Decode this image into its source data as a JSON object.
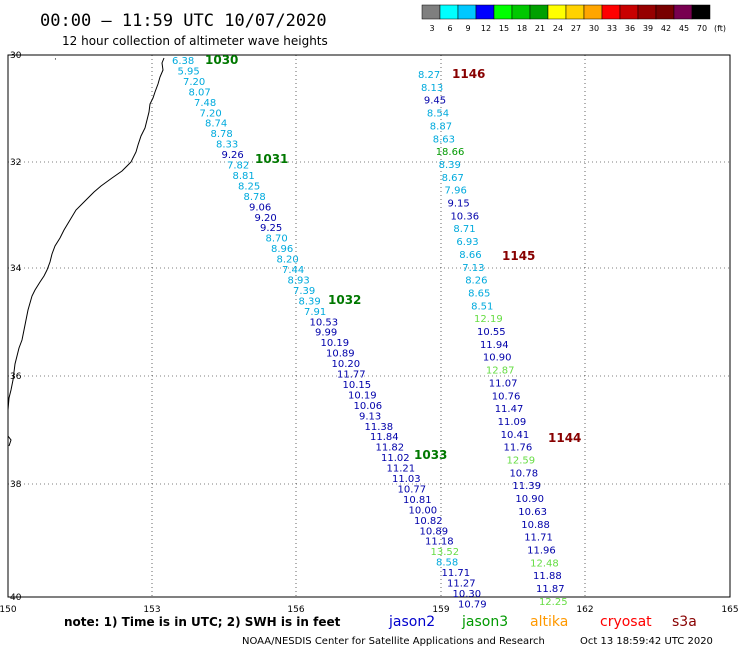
{
  "header": {
    "title": "00:00 – 11:59 UTC 10/07/2020",
    "subtitle": "12 hour collection of altimeter wave heights"
  },
  "color_scale": {
    "labels": [
      "3",
      "6",
      "9",
      "12",
      "15",
      "18",
      "21",
      "24",
      "27",
      "30",
      "33",
      "36",
      "39",
      "42",
      "45",
      "70",
      "(ft)"
    ],
    "colors": [
      "#7f7f7f",
      "#00ffff",
      "#00c8ff",
      "#0000ff",
      "#00ff00",
      "#00c800",
      "#00a000",
      "#ffff00",
      "#ffd200",
      "#ffa500",
      "#ff0000",
      "#c80000",
      "#960000",
      "#780000",
      "#780050",
      "#000000"
    ]
  },
  "axes": {
    "lon_labels": [
      "150",
      "153",
      "156",
      "159",
      "162",
      "165"
    ],
    "lat_labels": [
      "30",
      "32",
      "34",
      "36",
      "38",
      "40"
    ]
  },
  "tracks": [
    {
      "label": "1030",
      "label_color": "#007800",
      "values": [
        {
          "v": "6.38",
          "c": "#00aadd"
        },
        {
          "v": "5.95",
          "c": "#00aadd"
        },
        {
          "v": "7.20",
          "c": "#00aadd"
        },
        {
          "v": "8.07",
          "c": "#00aadd"
        },
        {
          "v": "7.48",
          "c": "#00aadd"
        },
        {
          "v": "7.20",
          "c": "#00aadd"
        },
        {
          "v": "8.74",
          "c": "#00aadd"
        },
        {
          "v": "8.78",
          "c": "#00aadd"
        },
        {
          "v": "8.33",
          "c": "#00aadd"
        },
        {
          "v": "9.26",
          "c": "#0000aa"
        },
        {
          "v": "7.82",
          "c": "#00aadd"
        },
        {
          "v": "8.81",
          "c": "#00aadd"
        },
        {
          "v": "8.25",
          "c": "#00aadd"
        },
        {
          "v": "8.78",
          "c": "#00aadd"
        },
        {
          "v": "9.06",
          "c": "#0000aa"
        },
        {
          "v": "9.20",
          "c": "#0000aa"
        },
        {
          "v": "9.25",
          "c": "#0000aa"
        },
        {
          "v": "8.70",
          "c": "#00aadd"
        },
        {
          "v": "8.96",
          "c": "#00aadd"
        },
        {
          "v": "8.20",
          "c": "#00aadd"
        },
        {
          "v": "7.44",
          "c": "#00aadd"
        },
        {
          "v": "8.93",
          "c": "#00aadd"
        },
        {
          "v": "7.39",
          "c": "#00aadd"
        },
        {
          "v": "8.39",
          "c": "#00aadd"
        },
        {
          "v": "7.91",
          "c": "#00aadd"
        },
        {
          "v": "10.53",
          "c": "#0000aa"
        },
        {
          "v": "9.99",
          "c": "#0000aa"
        },
        {
          "v": "10.19",
          "c": "#0000aa"
        },
        {
          "v": "10.89",
          "c": "#0000aa"
        },
        {
          "v": "10.20",
          "c": "#0000aa"
        },
        {
          "v": "11.77",
          "c": "#0000aa"
        },
        {
          "v": "10.15",
          "c": "#0000aa"
        },
        {
          "v": "10.19",
          "c": "#0000aa"
        },
        {
          "v": "10.06",
          "c": "#0000aa"
        },
        {
          "v": "9.13",
          "c": "#0000aa"
        },
        {
          "v": "11.38",
          "c": "#0000aa"
        },
        {
          "v": "11.84",
          "c": "#0000aa"
        },
        {
          "v": "11.82",
          "c": "#0000aa"
        },
        {
          "v": "11.02",
          "c": "#0000aa"
        },
        {
          "v": "11.21",
          "c": "#0000aa"
        },
        {
          "v": "11.03",
          "c": "#0000aa"
        },
        {
          "v": "10.77",
          "c": "#0000aa"
        },
        {
          "v": "10.81",
          "c": "#0000aa"
        },
        {
          "v": "10.00",
          "c": "#0000aa"
        },
        {
          "v": "10.82",
          "c": "#0000aa"
        },
        {
          "v": "10.89",
          "c": "#0000aa"
        },
        {
          "v": "11.18",
          "c": "#0000aa"
        },
        {
          "v": "13.52",
          "c": "#66dd44"
        },
        {
          "v": "8.58",
          "c": "#00aadd"
        },
        {
          "v": "11.71",
          "c": "#0000aa"
        },
        {
          "v": "11.27",
          "c": "#0000aa"
        },
        {
          "v": "10.30",
          "c": "#0000aa"
        },
        {
          "v": "10.79",
          "c": "#0000aa"
        }
      ],
      "pass_labels": [
        {
          "text": "1031",
          "color": "#007800"
        },
        {
          "text": "1032",
          "color": "#007800"
        },
        {
          "text": "1033",
          "color": "#007800"
        }
      ]
    },
    {
      "label": "1146",
      "label_color": "#880000",
      "values": [
        {
          "v": "8.27",
          "c": "#00aadd"
        },
        {
          "v": "8.13",
          "c": "#00aadd"
        },
        {
          "v": "9.45",
          "c": "#0000aa"
        },
        {
          "v": "8.54",
          "c": "#00aadd"
        },
        {
          "v": "8.87",
          "c": "#00aadd"
        },
        {
          "v": "8.63",
          "c": "#00aadd"
        },
        {
          "v": "18.66",
          "c": "#009900"
        },
        {
          "v": "8.39",
          "c": "#00aadd"
        },
        {
          "v": "8.67",
          "c": "#00aadd"
        },
        {
          "v": "7.96",
          "c": "#00aadd"
        },
        {
          "v": "9.15",
          "c": "#0000aa"
        },
        {
          "v": "10.36",
          "c": "#0000aa"
        },
        {
          "v": "8.71",
          "c": "#00aadd"
        },
        {
          "v": "6.93",
          "c": "#00aadd"
        },
        {
          "v": "8.66",
          "c": "#00aadd"
        },
        {
          "v": "7.13",
          "c": "#00aadd"
        },
        {
          "v": "8.26",
          "c": "#00aadd"
        },
        {
          "v": "8.65",
          "c": "#00aadd"
        },
        {
          "v": "8.51",
          "c": "#00aadd"
        },
        {
          "v": "12.19",
          "c": "#66dd44"
        },
        {
          "v": "10.55",
          "c": "#0000aa"
        },
        {
          "v": "11.94",
          "c": "#0000aa"
        },
        {
          "v": "10.90",
          "c": "#0000aa"
        },
        {
          "v": "12.87",
          "c": "#66dd44"
        },
        {
          "v": "11.07",
          "c": "#0000aa"
        },
        {
          "v": "10.76",
          "c": "#0000aa"
        },
        {
          "v": "11.47",
          "c": "#0000aa"
        },
        {
          "v": "11.09",
          "c": "#0000aa"
        },
        {
          "v": "10.41",
          "c": "#0000aa"
        },
        {
          "v": "11.76",
          "c": "#0000aa"
        },
        {
          "v": "12.59",
          "c": "#66dd44"
        },
        {
          "v": "10.78",
          "c": "#0000aa"
        },
        {
          "v": "11.39",
          "c": "#0000aa"
        },
        {
          "v": "10.90",
          "c": "#0000aa"
        },
        {
          "v": "10.63",
          "c": "#0000aa"
        },
        {
          "v": "10.88",
          "c": "#0000aa"
        },
        {
          "v": "11.71",
          "c": "#0000aa"
        },
        {
          "v": "11.96",
          "c": "#0000aa"
        },
        {
          "v": "12.48",
          "c": "#66dd44"
        },
        {
          "v": "11.88",
          "c": "#0000aa"
        },
        {
          "v": "11.87",
          "c": "#0000aa"
        },
        {
          "v": "12.25",
          "c": "#66dd44"
        }
      ],
      "pass_labels": [
        {
          "text": "1145",
          "color": "#880000"
        },
        {
          "text": "1144",
          "color": "#880000"
        }
      ]
    }
  ],
  "footer": {
    "note": "note: 1) Time is in UTC; 2) SWH is in feet",
    "satellites": [
      {
        "name": "jason2",
        "color": "#0000cc"
      },
      {
        "name": "jason3",
        "color": "#009900"
      },
      {
        "name": "altika",
        "color": "#ff9900"
      },
      {
        "name": "cryosat",
        "color": "#ff0000"
      },
      {
        "name": "s3a",
        "color": "#880000"
      }
    ],
    "credit": "NOAA/NESDIS Center for Satellite Applications and Research",
    "timestamp": "Oct 13 18:59:42 UTC 2020"
  }
}
